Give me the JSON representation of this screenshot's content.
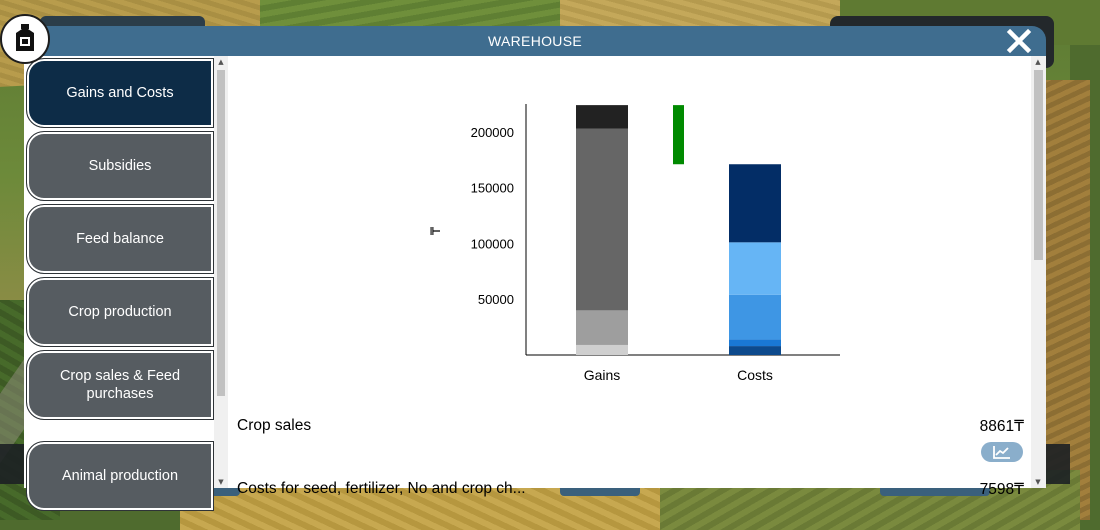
{
  "window": {
    "title": "WAREHOUSE"
  },
  "sidebar": {
    "items": [
      {
        "label": "Gains and Costs",
        "active": true
      },
      {
        "label": "Subsidies"
      },
      {
        "label": "Feed balance"
      },
      {
        "label": "Crop production"
      },
      {
        "label": "Crop sales & Feed purchases"
      },
      {
        "label": "Animal production"
      }
    ]
  },
  "chart_data": {
    "type": "bar",
    "stacked": true,
    "ylabel": "₸",
    "yticks": [
      50000,
      100000,
      150000,
      200000
    ],
    "ylim": [
      0,
      225000
    ],
    "categories": [
      "Gains",
      "Costs"
    ],
    "bars": [
      {
        "category": "Gains",
        "segments": [
          {
            "value": 9000,
            "color": "#cfcfcf"
          },
          {
            "value": 31000,
            "color": "#9e9e9e"
          },
          {
            "value": 163000,
            "color": "#666666"
          },
          {
            "value": 21000,
            "color": "#222222"
          }
        ]
      },
      {
        "category": "Costs",
        "segments": [
          {
            "value": 8000,
            "color": "#0d4a8c"
          },
          {
            "value": 6000,
            "color": "#1a78d4"
          },
          {
            "value": 40000,
            "color": "#3e96e4"
          },
          {
            "value": 47000,
            "color": "#66b5f5"
          },
          {
            "value": 70000,
            "color": "#032d66"
          }
        ]
      }
    ],
    "difference": {
      "from": 171000,
      "to": 224000,
      "color": "#008a00"
    }
  },
  "rows": [
    {
      "label": "Crop sales",
      "value": "8861₸"
    },
    {
      "label": "Costs for seed, fertilizer, No and crop ch...",
      "value": "7598₸"
    }
  ],
  "icons": {
    "close": "close-icon",
    "trend": "chart-line-icon",
    "logo": "warehouse-logo-icon"
  }
}
